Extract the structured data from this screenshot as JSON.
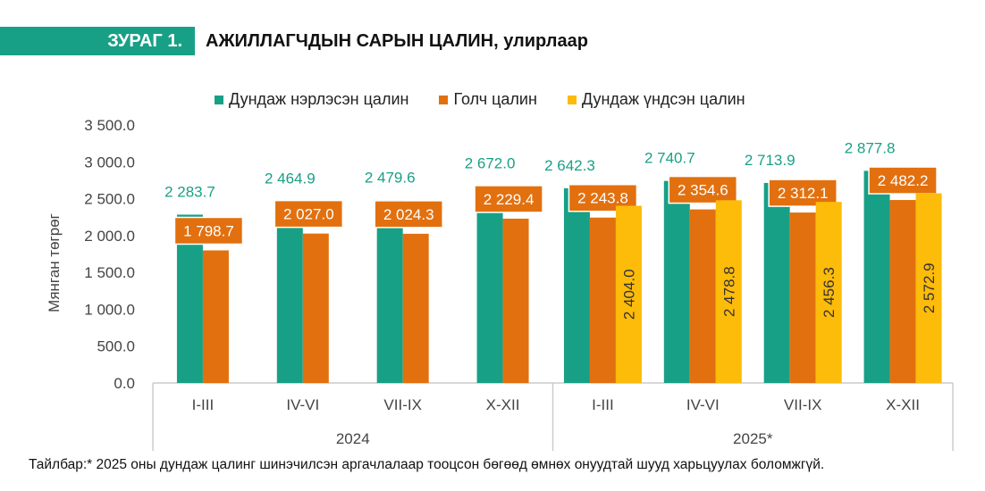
{
  "header": {
    "figure_label": "ЗУРАГ 1.",
    "title": "АЖИЛЛАГЧДЫН САРЫН ЦАЛИН, улирлаар"
  },
  "colors": {
    "accent": "#18a086",
    "series": [
      "#18a086",
      "#e2700f",
      "#fdbb0a"
    ]
  },
  "chart_data": {
    "type": "bar",
    "ylabel": "Мянган төгрөг",
    "ylim": [
      0,
      3500
    ],
    "yticks": [
      "0.0",
      "500.0",
      "1 000.0",
      "1 500.0",
      "2 000.0",
      "2 500.0",
      "3 000.0",
      "3 500.0"
    ],
    "ytick_values": [
      0,
      500,
      1000,
      1500,
      2000,
      2500,
      3000,
      3500
    ],
    "grid": false,
    "legend": "top",
    "categories": [
      "I-III",
      "IV-VI",
      "VII-IX",
      "X-XII",
      "I-III",
      "IV-VI",
      "VII-IX",
      "X-XII"
    ],
    "groups": [
      {
        "label": "2024",
        "count": 4
      },
      {
        "label": "2025*",
        "count": 4
      }
    ],
    "series": [
      {
        "name": "Дундаж нэрлэсэн цалин",
        "color": "#18a086",
        "values": [
          2283.7,
          2464.9,
          2479.6,
          2672.0,
          2642.3,
          2740.7,
          2713.9,
          2877.8
        ],
        "labels": [
          "2 283.7",
          "2 464.9",
          "2 479.6",
          "2 672.0",
          "2 642.3",
          "2 740.7",
          "2 713.9",
          "2 877.8"
        ]
      },
      {
        "name": "Голч цалин",
        "color": "#e2700f",
        "values": [
          1798.7,
          2027.0,
          2024.3,
          2229.4,
          2243.8,
          2354.6,
          2312.1,
          2482.2
        ],
        "labels": [
          "1 798.7",
          "2 027.0",
          "2 024.3",
          "2 229.4",
          "2 243.8",
          "2 354.6",
          "2 312.1",
          "2 482.2"
        ]
      },
      {
        "name": "Дундаж үндсэн цалин",
        "color": "#fdbb0a",
        "values": [
          null,
          null,
          null,
          null,
          2404.0,
          2478.8,
          2456.3,
          2572.9
        ],
        "labels": [
          null,
          null,
          null,
          null,
          "2 404.0",
          "2 478.8",
          "2 456.3",
          "2 572.9"
        ]
      }
    ]
  },
  "footnote": "Тайлбар:* 2025 оны дундаж цалинг шинэчилсэн аргачлалаар тооцсон бөгөөд өмнөх онуудтай шууд харьцуулах боломжгүй."
}
